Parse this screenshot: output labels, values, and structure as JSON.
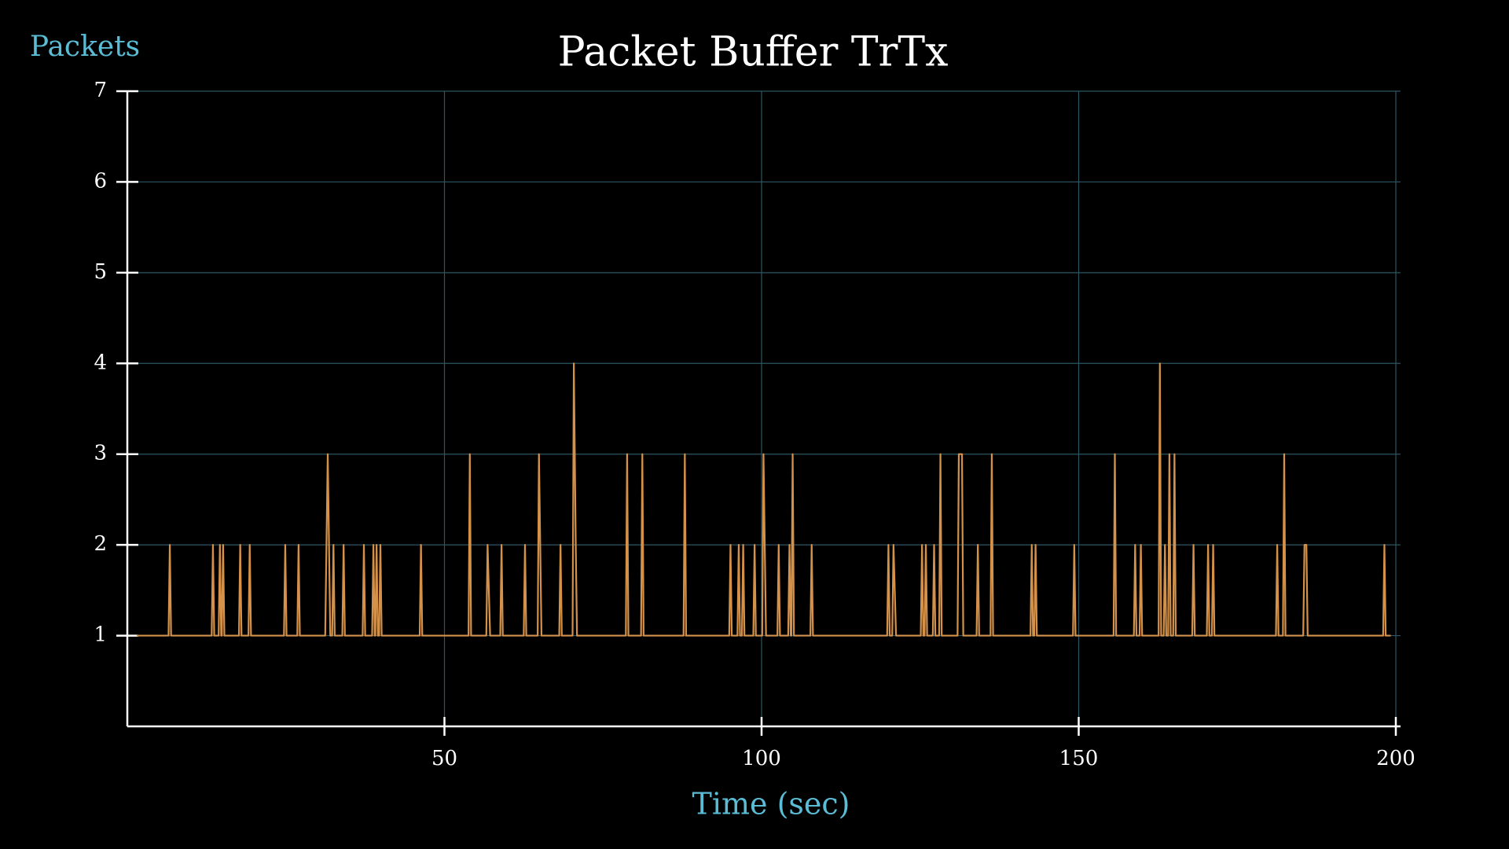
{
  "chart_data": {
    "type": "line",
    "title": "Packet Buffer TrTx",
    "x_label": "Time (sec)",
    "y_label": "Packets",
    "x": [
      1.5,
      6.5,
      6.7,
      6.9,
      13.3,
      13.5,
      13.7,
      14.4,
      14.6,
      14.8,
      14.9,
      15.1,
      15.3,
      17.6,
      17.8,
      18.0,
      19.1,
      19.3,
      19.5,
      24.7,
      24.9,
      25.1,
      26.8,
      27.0,
      27.2,
      31.2,
      31.6,
      32.0,
      32.3,
      32.5,
      32.7,
      33.9,
      34.1,
      34.3,
      37.1,
      37.3,
      37.5,
      38.6,
      38.8,
      39.0,
      39.1,
      39.3,
      39.5,
      39.7,
      39.9,
      40.1,
      46.1,
      46.3,
      46.5,
      53.8,
      54.0,
      54.2,
      56.6,
      56.8,
      57.2,
      58.8,
      59.0,
      59.2,
      62.5,
      62.7,
      62.9,
      64.7,
      64.9,
      65.3,
      68.1,
      68.3,
      68.5,
      70.2,
      70.4,
      70.7,
      70.9,
      78.6,
      78.8,
      79.0,
      81.0,
      81.2,
      81.4,
      87.7,
      87.9,
      88.1,
      94.9,
      95.1,
      95.3,
      96.2,
      96.4,
      96.6,
      96.9,
      97.1,
      97.3,
      98.7,
      98.9,
      99.1,
      100.1,
      100.3,
      100.7,
      102.5,
      102.7,
      102.9,
      104.2,
      104.4,
      104.6,
      104.7,
      104.9,
      105.1,
      107.7,
      107.9,
      108.1,
      119.8,
      120.0,
      120.2,
      120.6,
      120.8,
      121.2,
      125.1,
      125.3,
      125.5,
      125.7,
      125.9,
      126.1,
      127.0,
      127.2,
      127.4,
      128.0,
      128.2,
      128.4,
      130.9,
      131.1,
      131.6,
      131.8,
      133.9,
      134.1,
      134.3,
      136.1,
      136.3,
      136.5,
      142.4,
      142.6,
      142.8,
      143.0,
      143.2,
      143.4,
      149.1,
      149.3,
      149.5,
      155.5,
      155.7,
      155.9,
      158.7,
      158.9,
      159.1,
      159.6,
      159.8,
      160.0,
      162.6,
      162.8,
      163.0,
      163.4,
      163.6,
      163.8,
      164.1,
      164.3,
      164.5,
      164.9,
      165.1,
      165.3,
      167.9,
      168.1,
      168.3,
      170.2,
      170.4,
      170.6,
      171.0,
      171.2,
      171.4,
      181.1,
      181.3,
      181.5,
      182.2,
      182.4,
      182.6,
      185.4,
      185.6,
      185.9,
      186.1,
      198.0,
      198.2,
      198.4,
      199.2
    ],
    "series": [
      {
        "color": "#d4914a",
        "values": [
          1,
          1,
          2,
          1,
          1,
          2,
          1,
          1,
          2,
          1,
          1,
          2,
          1,
          1,
          2,
          1,
          1,
          2,
          1,
          1,
          2,
          1,
          1,
          2,
          1,
          1,
          3,
          1,
          1,
          2,
          1,
          1,
          2,
          1,
          1,
          2,
          1,
          1,
          2,
          1,
          1,
          2,
          1,
          1,
          2,
          1,
          1,
          2,
          1,
          1,
          3,
          1,
          1,
          2,
          1,
          1,
          2,
          1,
          1,
          2,
          1,
          1,
          3,
          1,
          1,
          2,
          1,
          1,
          4,
          2,
          1,
          1,
          3,
          1,
          1,
          3,
          1,
          1,
          3,
          1,
          1,
          2,
          1,
          1,
          2,
          1,
          1,
          2,
          1,
          1,
          2,
          1,
          1,
          3,
          1,
          1,
          2,
          1,
          1,
          2,
          1,
          1,
          3,
          1,
          1,
          2,
          1,
          1,
          2,
          1,
          1,
          2,
          1,
          1,
          2,
          1,
          1,
          2,
          1,
          1,
          2,
          1,
          1,
          3,
          1,
          1,
          3,
          3,
          1,
          1,
          2,
          1,
          1,
          3,
          1,
          1,
          2,
          1,
          1,
          2,
          1,
          1,
          2,
          1,
          1,
          3,
          1,
          1,
          2,
          1,
          1,
          2,
          1,
          1,
          4,
          1,
          1,
          2,
          1,
          1,
          3,
          1,
          1,
          3,
          1,
          1,
          2,
          1,
          1,
          2,
          1,
          1,
          2,
          1,
          1,
          2,
          1,
          1,
          3,
          1,
          1,
          2,
          2,
          1,
          1,
          2,
          1,
          1
        ]
      }
    ],
    "xlim": [
      0,
      200
    ],
    "ylim": [
      0,
      7
    ],
    "xticks": [
      50,
      100,
      150,
      200
    ],
    "yticks": [
      1,
      2,
      3,
      4,
      5,
      6,
      7
    ],
    "grid": true
  }
}
